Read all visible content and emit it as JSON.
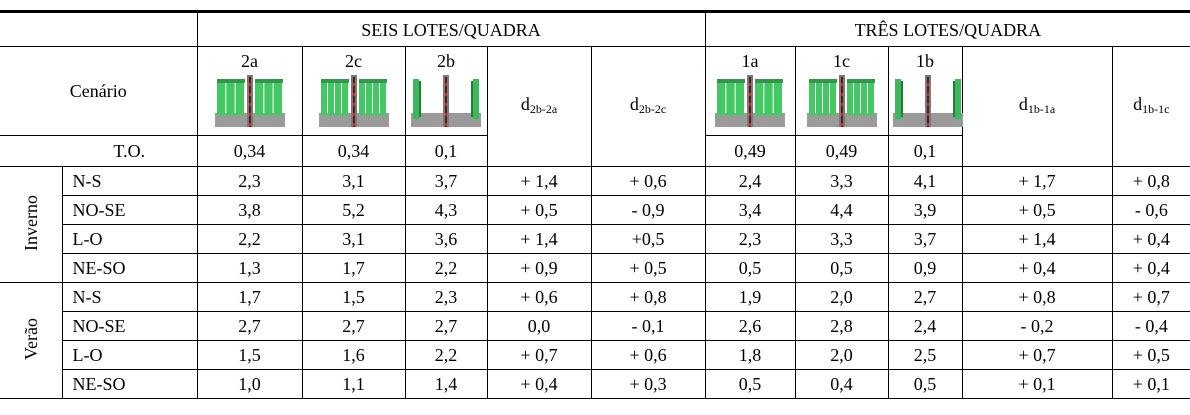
{
  "header": {
    "scenario_label": "Cenário",
    "groups": [
      "SEIS LOTES/QUADRA",
      "TRÊS LOTES/QUADRA"
    ],
    "columns": [
      {
        "label": "2a"
      },
      {
        "label": "2c"
      },
      {
        "label": "2b"
      },
      {
        "symbol": "d",
        "subscript": "2b-2a"
      },
      {
        "symbol": "d",
        "subscript": "2b-2c"
      },
      {
        "label": "1a"
      },
      {
        "label": "1c"
      },
      {
        "label": "1b"
      },
      {
        "symbol": "d",
        "subscript": "1b-1a"
      },
      {
        "symbol": "d",
        "subscript": "1b-1c"
      }
    ],
    "to": {
      "label": "T.O.",
      "values": [
        "0,34",
        "0,34",
        "0,1",
        "0,49",
        "0,49",
        "0,1"
      ]
    }
  },
  "sections": [
    {
      "label": "Inverno",
      "rows": [
        {
          "label": "N-S",
          "cells": [
            "2,3",
            "3,1",
            "3,7",
            "+ 1,4",
            "+ 0,6",
            "2,4",
            "3,3",
            "4,1",
            "+ 1,7",
            "+ 0,8"
          ]
        },
        {
          "label": "NO-SE",
          "cells": [
            "3,8",
            "5,2",
            "4,3",
            "+ 0,5",
            "- 0,9",
            "3,4",
            "4,4",
            "3,9",
            "+ 0,5",
            "- 0,6"
          ]
        },
        {
          "label": "L-O",
          "cells": [
            "2,2",
            "3,1",
            "3,6",
            "+ 1,4",
            "+0,5",
            "2,3",
            "3,3",
            "3,7",
            "+ 1,4",
            "+ 0,4"
          ]
        },
        {
          "label": "NE-SO",
          "cells": [
            "1,3",
            "1,7",
            "2,2",
            "+ 0,9",
            "+ 0,5",
            "0,5",
            "0,5",
            "0,9",
            "+ 0,4",
            "+ 0,4"
          ]
        }
      ]
    },
    {
      "label": "Verão",
      "rows": [
        {
          "label": "N-S",
          "cells": [
            "1,7",
            "1,5",
            "2,3",
            "+ 0,6",
            "+ 0,8",
            "1,9",
            "2,0",
            "2,7",
            "+ 0,8",
            "+ 0,7"
          ]
        },
        {
          "label": "NO-SE",
          "cells": [
            "2,7",
            "2,7",
            "2,7",
            "0,0",
            "- 0,1",
            "2,6",
            "2,8",
            "2,4",
            "- 0,2",
            "- 0,4"
          ]
        },
        {
          "label": "L-O",
          "cells": [
            "1,5",
            "1,6",
            "2,2",
            "+ 0,7",
            "+ 0,6",
            "1,8",
            "2,0",
            "2,5",
            "+ 0,7",
            "+ 0,5"
          ]
        },
        {
          "label": "NE-SO",
          "cells": [
            "1,0",
            "1,1",
            "1,4",
            "+ 0,4",
            "+ 0,3",
            "0,5",
            "0,4",
            "0,5",
            "+ 0,1",
            "+ 0,1"
          ]
        }
      ]
    }
  ]
}
